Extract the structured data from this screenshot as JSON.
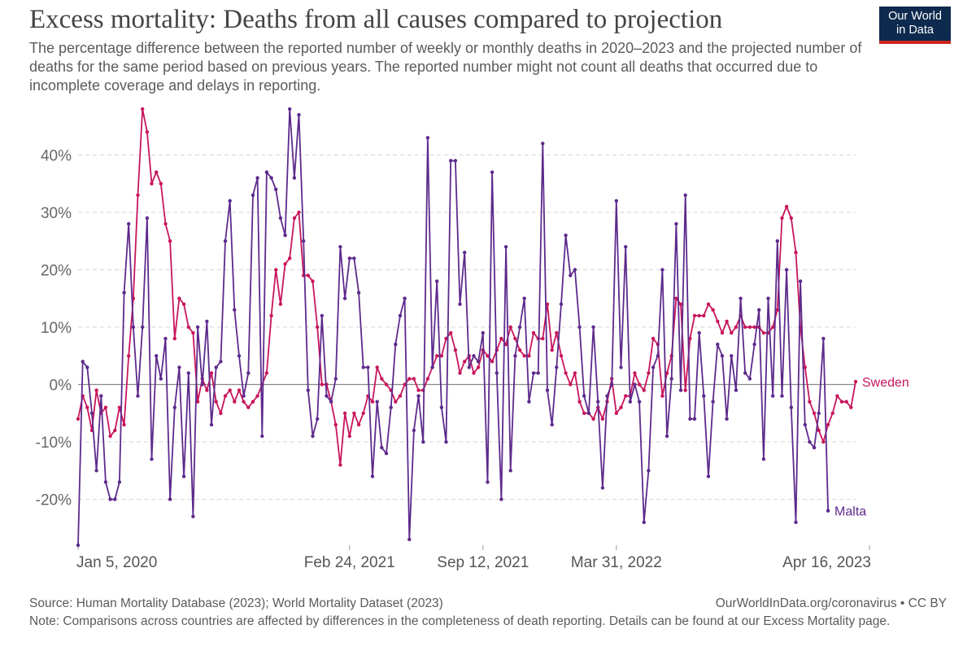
{
  "header": {
    "title": "Excess mortality: Deaths from all causes compared to projection",
    "subtitle": "The percentage difference between the reported number of weekly or monthly deaths in 2020–2023 and the projected number of deaths for the same period based on previous years. The reported number might not count all deaths that occurred due to incomplete coverage and delays in reporting.",
    "logo_line1": "Our World",
    "logo_line2": "in Data"
  },
  "footer": {
    "source": "Source: Human Mortality Database (2023); World Mortality Dataset (2023)",
    "credit": "OurWorldInData.org/coronavirus • CC BY",
    "note": "Note: Comparisons across countries are affected by differences in the completeness of death reporting. Details can be found at our Excess Mortality page."
  },
  "chart_data": {
    "type": "line",
    "title": "Excess mortality: Deaths from all causes compared to projection",
    "ylim": [
      -28,
      48
    ],
    "y_ticks": [
      -20,
      -10,
      0,
      10,
      20,
      30,
      40
    ],
    "y_tick_labels": [
      "-20%",
      "-10%",
      "0%",
      "10%",
      "20%",
      "30%",
      "40%"
    ],
    "x_ticks": [
      "Jan 5, 2020",
      "Feb 24, 2021",
      "Sep 12, 2021",
      "Mar 31, 2022",
      "Apr 16, 2023"
    ],
    "x_tick_weeks": [
      0,
      59,
      88,
      117,
      172
    ],
    "grid": "horizontal dashed",
    "colors": {
      "Sweden": "#c8155c",
      "Malta": "#5d2a8c",
      "zero_line": "#8a8a8a",
      "grid": "#d6d6d6"
    },
    "series": [
      {
        "name": "Sweden",
        "values": [
          -6,
          -2,
          -4,
          -8,
          -1,
          -5,
          -4,
          -9,
          -8,
          -4,
          -7,
          5,
          15,
          33,
          48,
          44,
          35,
          37,
          35,
          28,
          25,
          8,
          15,
          14,
          10,
          9,
          -3,
          1,
          -1,
          2,
          -3,
          -5,
          -2,
          -1,
          -3,
          -1,
          -3,
          -4,
          -3,
          -2,
          0,
          2,
          12,
          20,
          14,
          21,
          22,
          29,
          30,
          19,
          19,
          18,
          10,
          0,
          0,
          -3,
          -7,
          -14,
          -5,
          -9,
          -5,
          -7,
          -5,
          -2,
          -3,
          3,
          1,
          0,
          -1,
          -3,
          -2,
          0,
          1,
          1,
          -1,
          -1,
          1,
          3,
          5,
          5,
          8,
          9,
          6,
          2,
          4,
          5,
          2,
          3,
          6,
          5,
          4,
          6,
          8,
          7,
          10,
          8,
          6,
          5,
          5,
          9,
          8,
          8,
          14,
          6,
          9,
          5,
          2,
          0,
          2,
          -3,
          -5,
          -5,
          -6,
          -4,
          -6,
          -3,
          1,
          -5,
          -4,
          -2,
          -2,
          2,
          0,
          -1,
          2,
          8,
          7,
          -2,
          2,
          5,
          15,
          14,
          -1,
          8,
          12,
          12,
          12,
          14,
          13,
          11,
          9,
          11,
          9,
          10,
          12,
          10,
          10,
          10,
          10,
          9,
          9,
          10,
          13,
          29,
          31,
          29,
          23,
          10,
          3,
          -3,
          -5,
          -8,
          -10,
          -7,
          -5,
          -2,
          -3,
          -3,
          -4,
          0.5
        ],
        "end_label": "Sweden"
      },
      {
        "name": "Malta",
        "values": [
          -28,
          4,
          3,
          -5,
          -15,
          -2,
          -17,
          -20,
          -20,
          -17,
          16,
          28,
          10,
          -2,
          10,
          29,
          -13,
          5,
          1,
          8,
          -20,
          -4,
          3,
          -16,
          2,
          -23,
          10,
          0,
          11,
          -7,
          3,
          4,
          25,
          32,
          13,
          5,
          -2,
          2,
          33,
          36,
          -9,
          37,
          36,
          34,
          29,
          26,
          48,
          36,
          47,
          25,
          -1,
          -9,
          -6,
          12,
          -2,
          -3,
          1,
          24,
          15,
          22,
          22,
          16,
          3,
          3,
          -16,
          -3,
          -11,
          -12,
          -4,
          7,
          12,
          15,
          -27,
          -8,
          -2,
          -10,
          43,
          3,
          18,
          -4,
          -10,
          39,
          39,
          14,
          23,
          3,
          5,
          4,
          9,
          -17,
          37,
          2,
          -20,
          24,
          -15,
          5,
          10,
          15,
          -3,
          2,
          2,
          42,
          -1,
          -7,
          3,
          14,
          26,
          19,
          20,
          10,
          -2,
          -5,
          10,
          -3,
          -18,
          -2,
          0,
          32,
          3,
          24,
          -3,
          0,
          -3,
          -24,
          -15,
          3,
          5,
          20,
          -9,
          1,
          28,
          -1,
          33,
          -6,
          -6,
          9,
          -2,
          -16,
          -3,
          7,
          5,
          -6,
          5,
          -1,
          15,
          2,
          1,
          7,
          13,
          -13,
          15,
          -2,
          25,
          -2,
          20,
          -4,
          -24,
          18,
          -7,
          -10,
          -11,
          -5,
          8,
          -22
        ],
        "end_label": "Malta"
      }
    ]
  }
}
